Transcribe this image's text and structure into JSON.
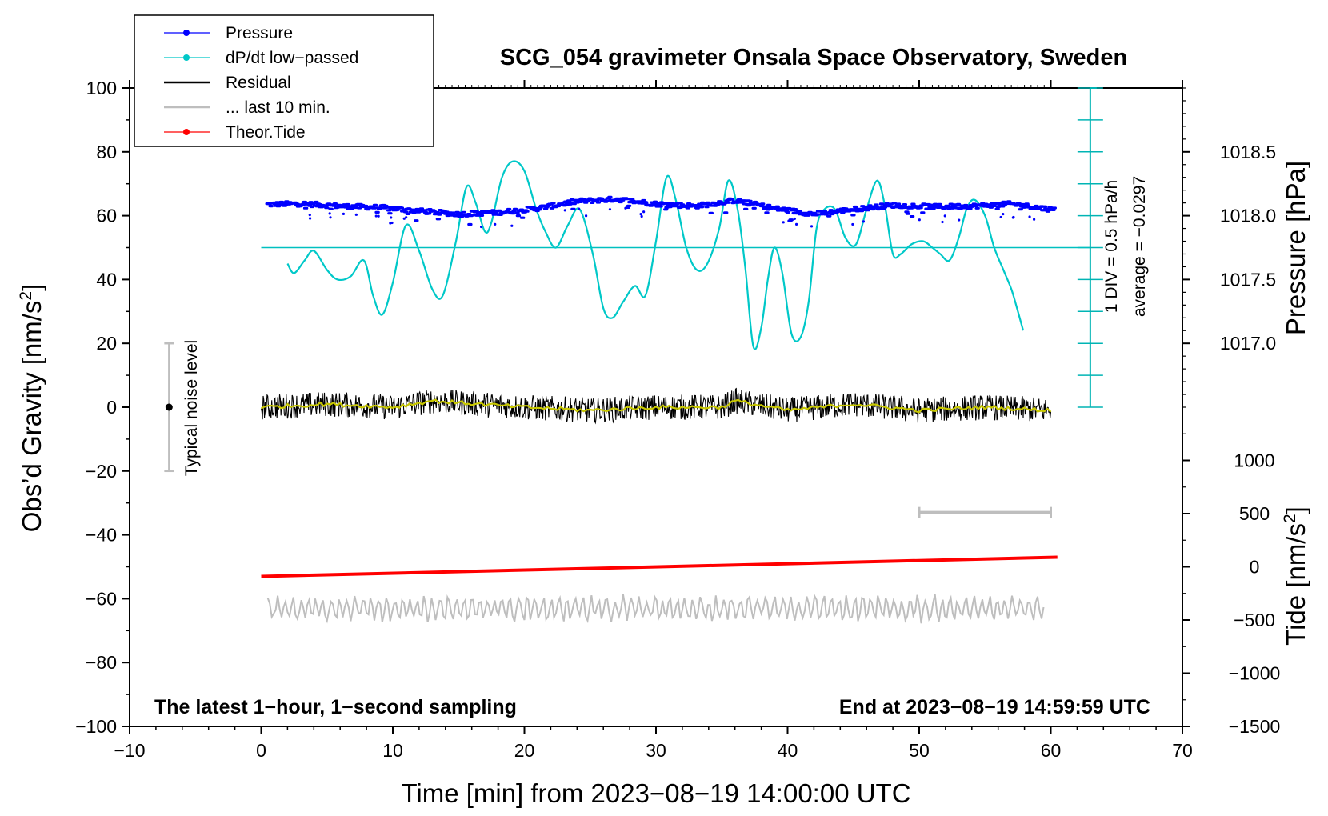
{
  "chart_data": {
    "type": "line",
    "title": "SCG_054 gravimeter Onsala Space Observatory, Sweden",
    "xlabel": "Time [min] from 2023−08−19 14:00:00 UTC",
    "ylabel_left": "Obs’d Gravity [nm/s",
    "ylabel_left_sup": "2",
    "ylabel_left_close": "]",
    "ylabel_right_pressure": "Pressure [hPa]",
    "ylabel_right_tide": "Tide [nm/s",
    "ylabel_right_tide_sup": "2",
    "ylabel_right_tide_close": "]",
    "xlim": [
      -10,
      70
    ],
    "ylim_left": [
      -100,
      100
    ],
    "x_ticks": [
      "−10",
      "0",
      "10",
      "20",
      "30",
      "40",
      "50",
      "60",
      "70"
    ],
    "y_left_ticks": [
      "100",
      "80",
      "60",
      "40",
      "20",
      "0",
      "−20",
      "−40",
      "−60",
      "−80",
      "−100"
    ],
    "pressure_ticks": [
      "1018.5",
      "1018.0",
      "1017.5",
      "1017.0"
    ],
    "tide_ticks": [
      "1000",
      "500",
      "0",
      "−500",
      "−1000",
      "−1500"
    ],
    "footer_left": "The latest 1−hour, 1−second sampling",
    "footer_right": "End at 2023−08−19 14:59:59 UTC",
    "noise_label": "Typical noise level",
    "dpdt_scale": "1 DIV = 0.5 hPa/h",
    "dpdt_average": "average = −0.0297",
    "legend": [
      {
        "name": "Pressure",
        "color": "#0000ff",
        "marker": true
      },
      {
        "name": "dP/dt low−passed",
        "color": "#00c8c8",
        "marker": true
      },
      {
        "name": "Residual",
        "color": "#000000",
        "marker": false
      },
      {
        "name": "... last 10 min.",
        "color": "#bebebe",
        "marker": false
      },
      {
        "name": "Theor.Tide",
        "color": "#ff0000",
        "marker": true
      }
    ],
    "series": {
      "pressure_left_units": {
        "x": [
          0.5,
          3,
          6,
          9,
          12,
          15,
          18,
          21,
          24,
          27,
          30,
          33,
          36,
          39,
          42,
          45,
          48,
          51,
          54,
          57,
          60
        ],
        "y": [
          63.5,
          63.8,
          63,
          62.6,
          61.5,
          60.5,
          61,
          62.3,
          64.5,
          65.2,
          63.7,
          63,
          64.8,
          62.3,
          60.5,
          62,
          63.3,
          62.8,
          63,
          63.7,
          62
        ]
      },
      "dpdt_left_units": {
        "x": [
          2.0,
          2.5,
          3.3,
          4.0,
          5.0,
          5.8,
          6.8,
          7.8,
          8.5,
          9.2,
          10.0,
          11.0,
          12.0,
          13.0,
          13.8,
          14.8,
          15.6,
          16.3,
          17.0,
          17.5,
          18.3,
          19.1,
          20.0,
          20.9,
          21.6,
          22.4,
          23.3,
          24.2,
          25.2,
          26.0,
          26.7,
          27.5,
          28.4,
          29.2,
          30.0,
          30.8,
          31.5,
          32.3,
          33.1,
          33.9,
          34.8,
          35.5,
          36.2,
          36.8,
          37.4,
          38.0,
          38.5,
          39.0,
          39.6,
          40.3,
          41.0,
          41.6,
          42.2,
          42.8,
          43.6,
          44.4,
          45.2,
          46.0,
          46.8,
          47.4,
          48.0,
          48.6,
          49.4,
          50.3,
          51.0,
          51.6,
          52.3,
          53.0,
          53.6,
          54.2,
          55.0,
          55.7,
          56.4,
          57.0,
          57.5,
          57.9
        ],
        "y": [
          45,
          42,
          46,
          49,
          43,
          40,
          41,
          46,
          35,
          29,
          39,
          57,
          49,
          37,
          35,
          52,
          69,
          64,
          55,
          58,
          72,
          77,
          74,
          62,
          55,
          50,
          57,
          62,
          48,
          31,
          28,
          33,
          38,
          35,
          52,
          72,
          65,
          50,
          43,
          45,
          56,
          71,
          62,
          43,
          19,
          25,
          40,
          50,
          42,
          23,
          22,
          33,
          56,
          62,
          62,
          53,
          51,
          62,
          71,
          63,
          48,
          48,
          51,
          52,
          50,
          48,
          46,
          53,
          62,
          65,
          60,
          50,
          43,
          37,
          30,
          24
        ]
      },
      "dpdt_average_level": 50,
      "residual_left_units": {
        "x": [
          0,
          60
        ],
        "y": [
          0,
          0
        ],
        "noise_amplitude": 4
      },
      "residual_smoothed_left_units": {
        "x": [
          0,
          5,
          10,
          13,
          20,
          25,
          30,
          35,
          36,
          40,
          45,
          50,
          55,
          60
        ],
        "y": [
          0,
          1,
          0,
          2,
          0,
          -1,
          0,
          0,
          2,
          -1,
          1,
          -1,
          0,
          -1
        ]
      },
      "theor_tide_nm_s2": {
        "x": [
          0,
          60.5
        ],
        "y": [
          -90,
          90
        ]
      },
      "last_10min_left_units": {
        "x": [
          0.5,
          59.5
        ],
        "baseline": -63,
        "amplitude": 4
      },
      "last_10min_bar_min": [
        50,
        60
      ],
      "noise_bar": {
        "x": -7,
        "ylow": -20,
        "yhigh": 20
      }
    }
  }
}
